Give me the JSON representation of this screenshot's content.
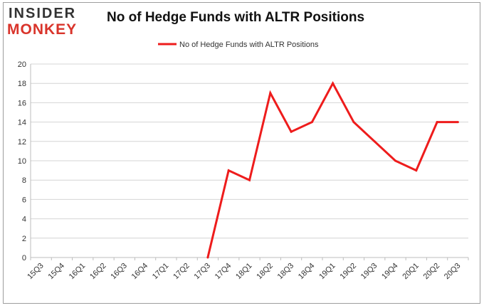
{
  "logo": {
    "line1": "INSIDER",
    "line2": "MONKEY"
  },
  "chart_data": {
    "type": "line",
    "title": "No of Hedge Funds with ALTR Positions",
    "xlabel": "",
    "ylabel": "",
    "categories": [
      "15Q3",
      "15Q4",
      "16Q1",
      "16Q2",
      "16Q3",
      "16Q4",
      "17Q1",
      "17Q2",
      "17Q3",
      "17Q4",
      "18Q1",
      "18Q2",
      "18Q3",
      "18Q4",
      "19Q1",
      "19Q2",
      "19Q3",
      "19Q4",
      "20Q1",
      "20Q2",
      "20Q3"
    ],
    "series": [
      {
        "name": "No of Hedge Funds with ALTR Positions",
        "values": [
          null,
          null,
          null,
          null,
          null,
          null,
          null,
          null,
          0,
          9,
          8,
          17,
          13,
          14,
          18,
          14,
          12,
          10,
          9,
          14,
          14
        ],
        "color": "#ee1c1c"
      }
    ],
    "ylim": [
      0,
      20
    ],
    "yticks": [
      0,
      2,
      4,
      6,
      8,
      10,
      12,
      14,
      16,
      18,
      20
    ],
    "grid": true,
    "legend": "top-center"
  }
}
